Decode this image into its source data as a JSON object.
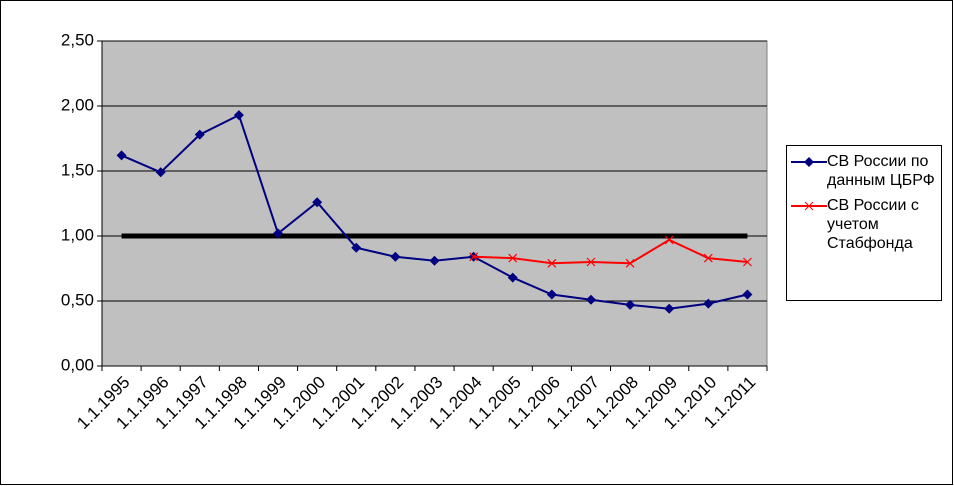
{
  "chart_data": {
    "type": "line",
    "categories": [
      "1.1.1995",
      "1.1.1996",
      "1.1.1997",
      "1.1.1998",
      "1.1.1999",
      "1.1.2000",
      "1.1.2001",
      "1.1.2002",
      "1.1.2003",
      "1.1.2004",
      "1.1.2005",
      "1.1.2006",
      "1.1.2007",
      "1.1.2008",
      "1.1.2009",
      "1.1.2010",
      "1.1.2011"
    ],
    "series": [
      {
        "name": "СВ России по данным ЦБРФ",
        "color": "#000080",
        "marker": "diamond",
        "values": [
          1.62,
          1.49,
          1.78,
          1.93,
          1.02,
          1.26,
          0.91,
          0.84,
          0.81,
          0.84,
          0.68,
          0.55,
          0.51,
          0.47,
          0.44,
          0.48,
          0.55
        ]
      },
      {
        "name": "СВ России с учетом Стабфонда",
        "color": "#ff0000",
        "marker": "x",
        "values": [
          null,
          null,
          null,
          null,
          null,
          null,
          null,
          null,
          null,
          0.84,
          0.83,
          0.79,
          0.8,
          0.79,
          0.97,
          0.83,
          0.8
        ]
      }
    ],
    "reference_line": {
      "value": 1,
      "color": "#000000"
    },
    "ylim": [
      0,
      2.5
    ],
    "yticks": [
      {
        "value": 0,
        "label": "0,00"
      },
      {
        "value": 0.5,
        "label": "0,50"
      },
      {
        "value": 1,
        "label": "1,00"
      },
      {
        "value": 1.5,
        "label": "1,50"
      },
      {
        "value": 2,
        "label": "2,00"
      },
      {
        "value": 2.5,
        "label": "2,50"
      }
    ],
    "grid": true,
    "legend": "right",
    "plot_background": "#c0c0c0"
  }
}
